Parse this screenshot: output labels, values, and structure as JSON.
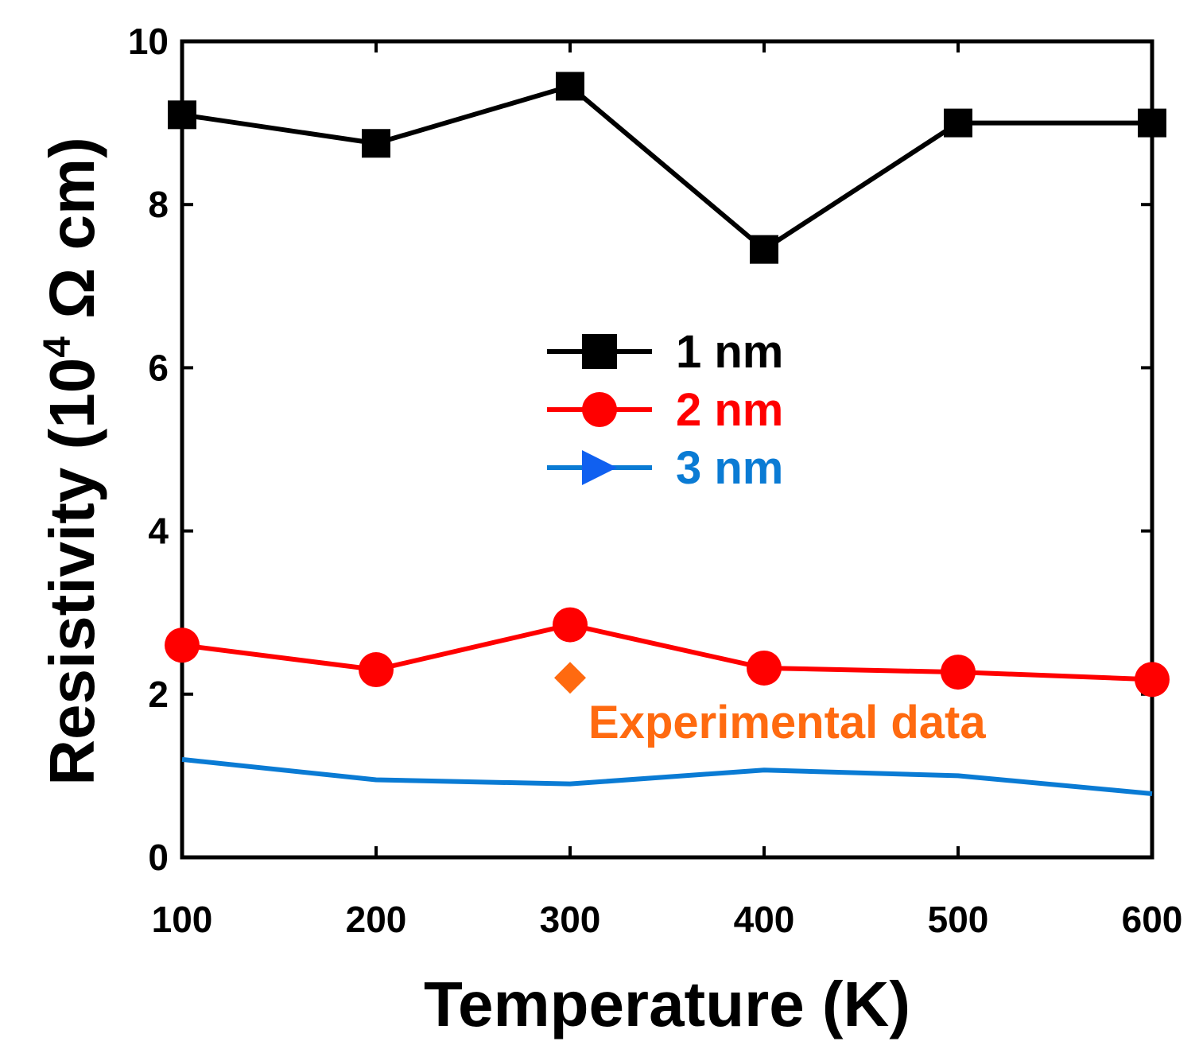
{
  "chart_data": {
    "type": "line",
    "title": "",
    "xlabel": "Temperature (K)",
    "ylabel": {
      "prefix": "Resistivity (10",
      "sup": "4",
      "suffix": " Ω cm)"
    },
    "xlim": [
      100,
      600
    ],
    "ylim": [
      0,
      10
    ],
    "xticks": [
      100,
      200,
      300,
      400,
      500,
      600
    ],
    "yticks": [
      0,
      2,
      4,
      6,
      8,
      10
    ],
    "x": [
      100,
      200,
      300,
      400,
      500,
      600
    ],
    "series": [
      {
        "name": "1 nm",
        "color": "#000000",
        "marker": "square",
        "show_markers": true,
        "values": [
          9.1,
          8.75,
          9.45,
          7.45,
          9.0,
          9.0
        ]
      },
      {
        "name": "2 nm",
        "color": "#ff0000",
        "marker": "circle",
        "show_markers": true,
        "values": [
          2.6,
          2.3,
          2.85,
          2.32,
          2.27,
          2.18
        ]
      },
      {
        "name": "3 nm",
        "color": "#0a7bd4",
        "marker": "triangle-right",
        "marker_color": "#1060f0",
        "show_markers": false,
        "values": [
          1.2,
          0.95,
          0.9,
          1.07,
          1.0,
          0.78
        ]
      }
    ],
    "experimental": {
      "label": "Experimental data",
      "x": 300,
      "y": 2.2,
      "color": "#ff6a10",
      "marker": "diamond"
    },
    "legend": {
      "position": "center"
    },
    "grid": false
  }
}
